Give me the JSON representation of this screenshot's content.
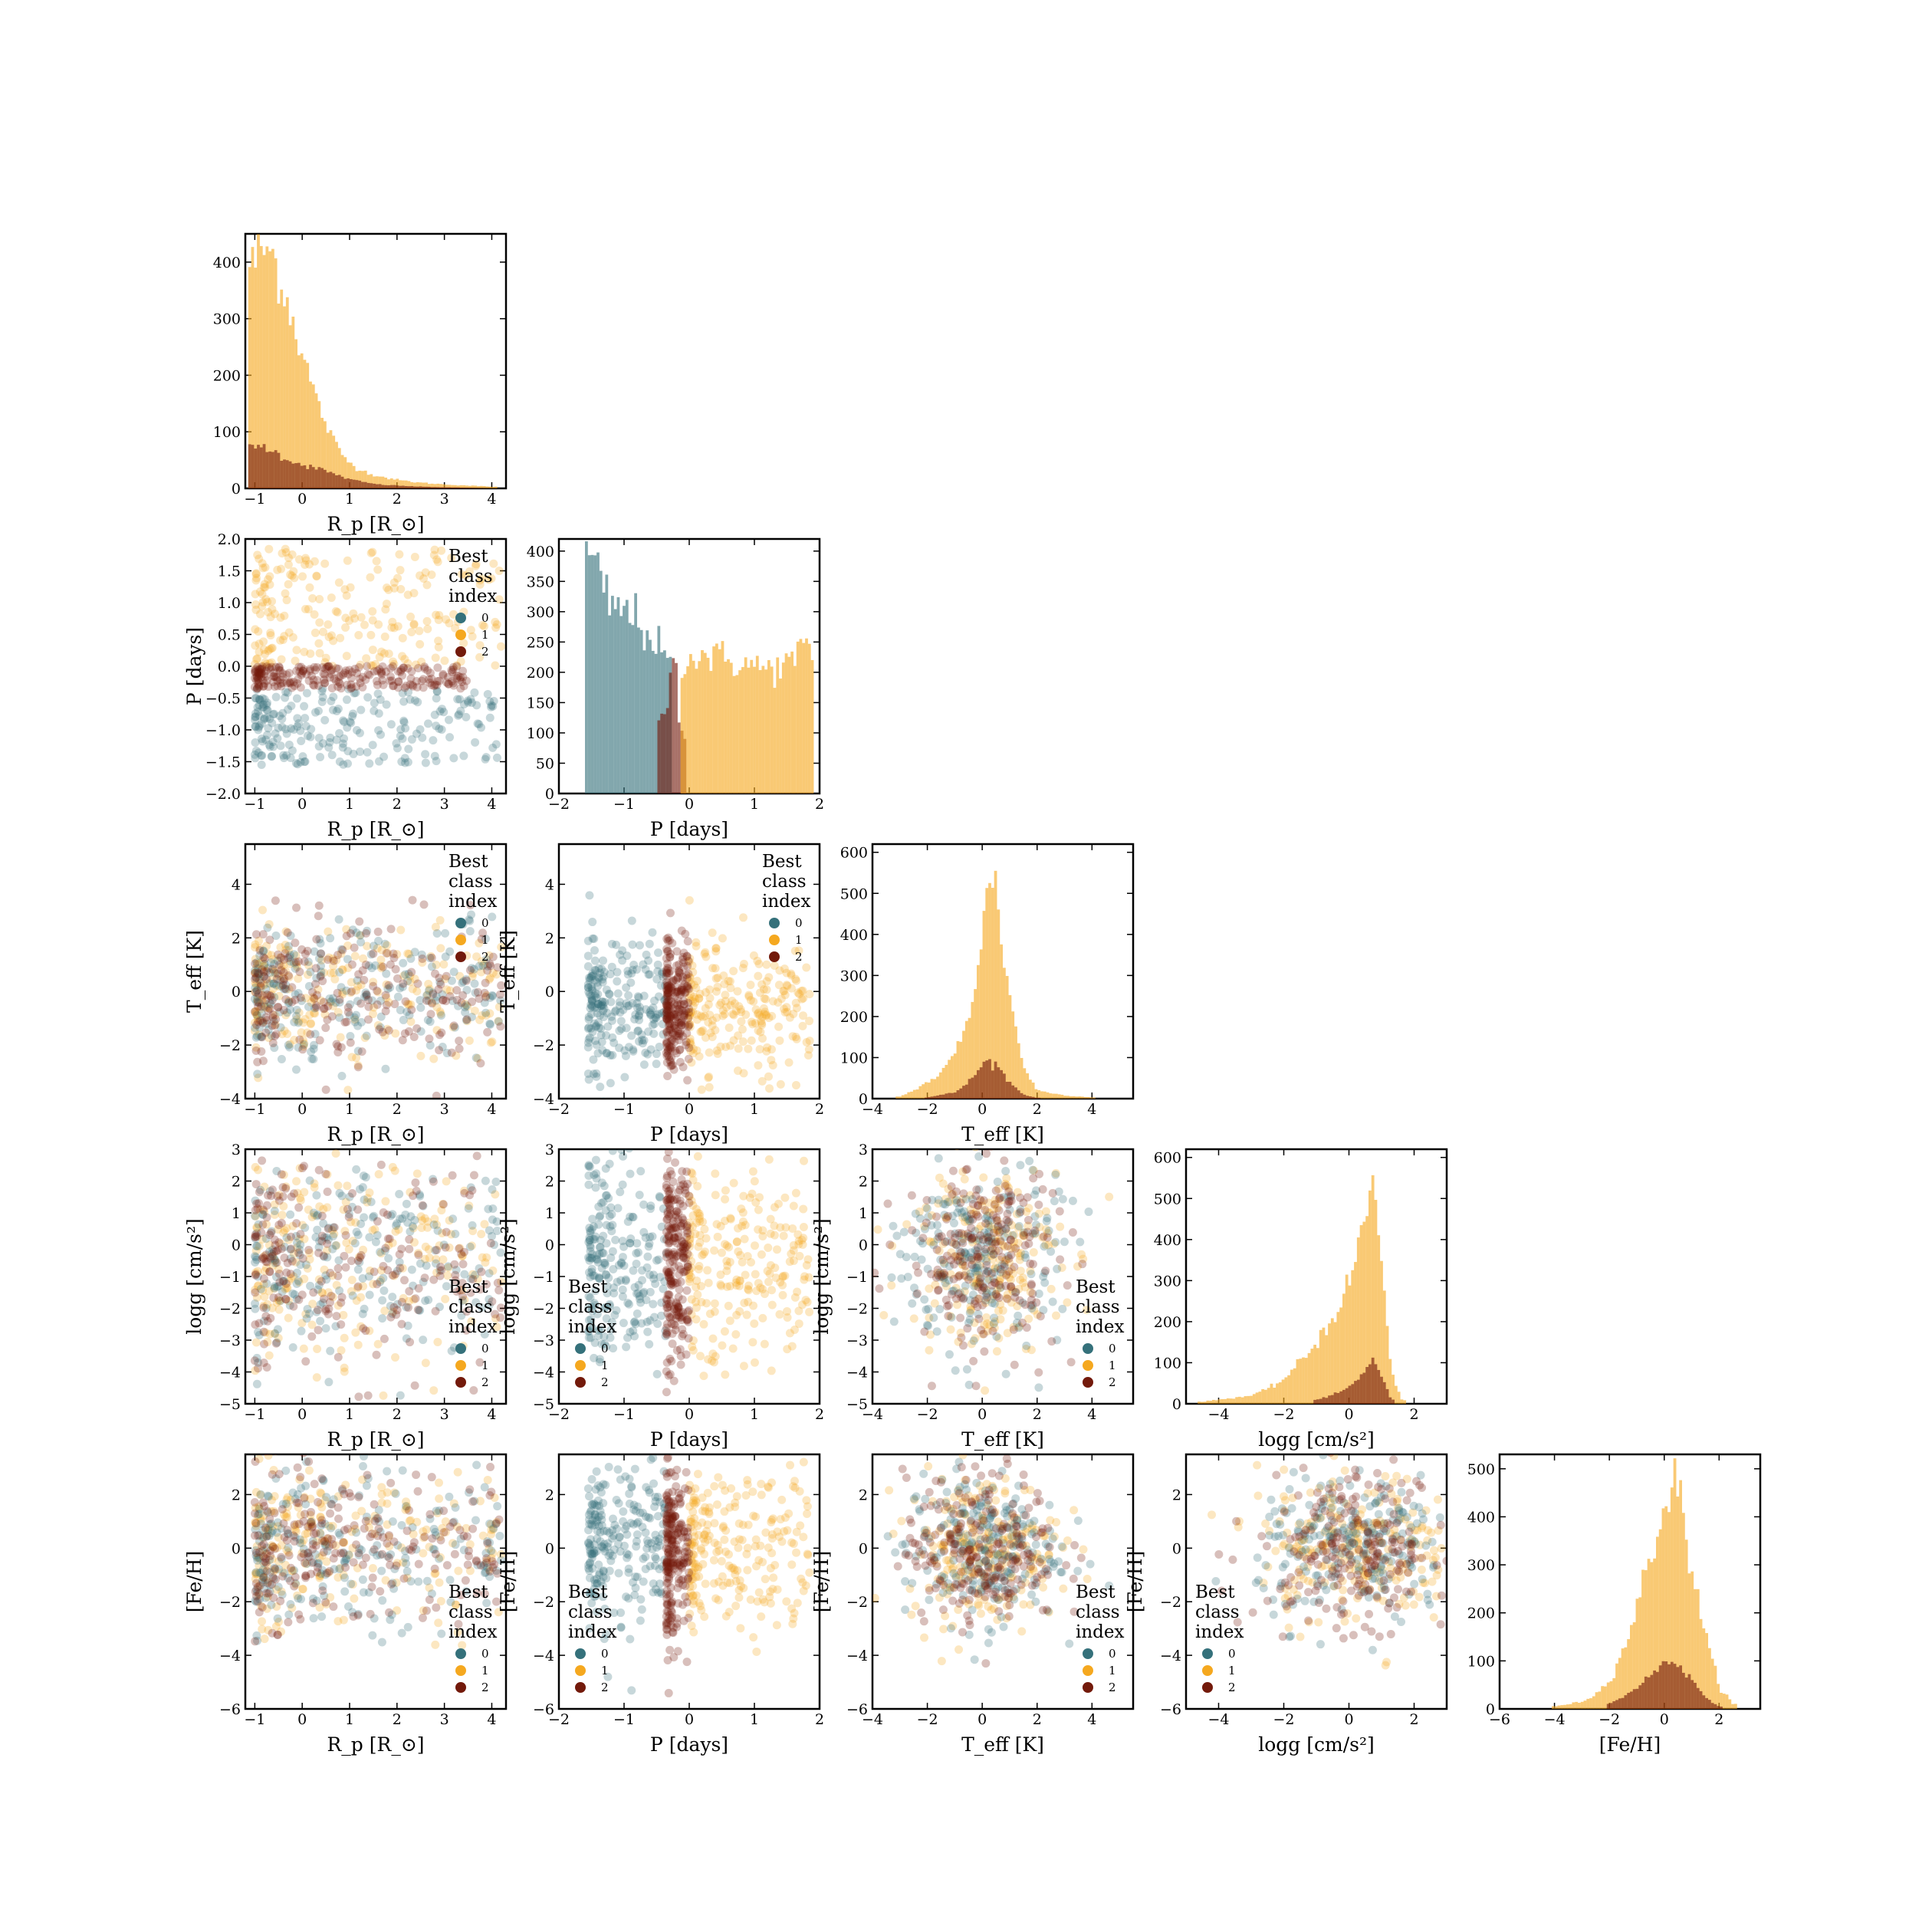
{
  "figure": {
    "type": "corner-plot",
    "colors": {
      "class_0": "#35717b",
      "class_1": "#f5a81f",
      "class_2": "#731a0b"
    }
  },
  "legend": {
    "title": [
      "Best",
      "class",
      "index"
    ],
    "items": [
      "0",
      "1",
      "2"
    ]
  },
  "params": [
    {
      "key": "Rp",
      "label": "R_p [R_⊙]",
      "range": [
        -1.2,
        4.3
      ],
      "ticks": [
        -1,
        0,
        1,
        2,
        3,
        4
      ]
    },
    {
      "key": "P",
      "label": "P [days]",
      "range": [
        -2,
        2
      ],
      "ticks": [
        -2,
        -1,
        0,
        1,
        2
      ]
    },
    {
      "key": "Teff",
      "label": "T_eff [K]",
      "range": [
        -4,
        5.5
      ],
      "ticks": [
        -4,
        -2,
        0,
        2,
        4
      ]
    },
    {
      "key": "logg",
      "label": "logg [cm/s²]",
      "range": [
        -5,
        3
      ],
      "ticks": [
        -4,
        -2,
        0,
        2
      ]
    },
    {
      "key": "FeH",
      "label": "[Fe/H]",
      "range": [
        -6,
        3.5
      ],
      "ticks": [
        -6,
        -4,
        -2,
        0,
        2
      ]
    }
  ],
  "y_tick_sets": {
    "P": [
      -2.0,
      -1.5,
      -1.0,
      -0.5,
      0.0,
      0.5,
      1.0,
      1.5,
      2.0
    ],
    "Teff": [
      -4,
      -2,
      0,
      2,
      4
    ],
    "logg": [
      -5,
      -4,
      -3,
      -2,
      -1,
      0,
      1,
      2,
      3
    ],
    "FeH": [
      -6,
      -4,
      -2,
      0,
      2
    ]
  },
  "chart_data": [
    {
      "type": "histogram",
      "variable": "Rp",
      "xlabel": "R_p [R_⊙]",
      "xlim": [
        -1.2,
        4.3
      ],
      "ylim": [
        0,
        450
      ],
      "yticks": [
        0,
        100,
        200,
        300,
        400
      ],
      "series": [
        {
          "name": "1",
          "x": [
            -1.0,
            -0.8,
            -0.6,
            -0.4,
            -0.2,
            0.0,
            0.2,
            0.4,
            0.6,
            0.8,
            1.0,
            1.3,
            1.6,
            2.0,
            2.5,
            3.0,
            3.5,
            4.0
          ],
          "values": [
            400,
            425,
            410,
            355,
            300,
            240,
            185,
            135,
            95,
            65,
            45,
            30,
            22,
            15,
            10,
            7,
            5,
            3
          ]
        },
        {
          "name": "2",
          "x": [
            -1.0,
            -0.8,
            -0.6,
            -0.4,
            -0.2,
            0.0,
            0.2,
            0.4,
            0.6,
            0.8,
            1.0,
            1.3,
            1.6,
            2.0,
            2.5,
            3.0,
            3.5,
            4.0
          ],
          "values": [
            70,
            75,
            65,
            55,
            48,
            42,
            38,
            33,
            28,
            22,
            16,
            11,
            7,
            5,
            3,
            2,
            1,
            0
          ]
        }
      ]
    },
    {
      "type": "histogram",
      "variable": "P",
      "xlabel": "P [days]",
      "xlim": [
        -2,
        2
      ],
      "ylim": [
        0,
        420
      ],
      "yticks": [
        0,
        50,
        100,
        150,
        200,
        250,
        300,
        350,
        400
      ],
      "series": [
        {
          "name": "0",
          "x": [
            -1.5,
            -1.4,
            -1.3,
            -1.2,
            -1.1,
            -1.0,
            -0.9,
            -0.8,
            -0.7,
            -0.6,
            -0.5,
            -0.4
          ],
          "values": [
            390,
            360,
            330,
            310,
            305,
            300,
            295,
            290,
            270,
            260,
            250,
            220
          ]
        },
        {
          "name": "2",
          "x": [
            -0.35,
            -0.3,
            -0.25,
            -0.2,
            -0.15
          ],
          "values": [
            120,
            210,
            240,
            200,
            100
          ]
        },
        {
          "name": "1",
          "x": [
            0.0,
            0.2,
            0.4,
            0.6,
            0.8,
            1.0,
            1.2,
            1.4,
            1.6,
            1.8
          ],
          "values": [
            220,
            230,
            225,
            220,
            215,
            210,
            205,
            210,
            220,
            240
          ]
        }
      ]
    },
    {
      "type": "histogram",
      "variable": "Teff",
      "xlabel": "T_eff [K]",
      "xlim": [
        -4,
        5.5
      ],
      "ylim": [
        0,
        620
      ],
      "yticks": [
        0,
        100,
        200,
        300,
        400,
        500,
        600
      ],
      "series": [
        {
          "name": "1",
          "x": [
            -3.0,
            -2.5,
            -2.0,
            -1.5,
            -1.0,
            -0.5,
            0.0,
            0.2,
            0.4,
            0.6,
            1.0,
            1.5,
            2.0,
            3.0,
            4.0
          ],
          "values": [
            5,
            20,
            40,
            60,
            110,
            200,
            380,
            520,
            560,
            450,
            250,
            80,
            20,
            8,
            3
          ]
        },
        {
          "name": "2",
          "x": [
            -2.0,
            -1.0,
            -0.5,
            0.0,
            0.2,
            0.4,
            0.6,
            1.0,
            1.5,
            2.0
          ],
          "values": [
            3,
            15,
            40,
            80,
            95,
            90,
            75,
            40,
            10,
            2
          ]
        }
      ]
    },
    {
      "type": "histogram",
      "variable": "logg",
      "xlabel": "logg [cm/s²]",
      "xlim": [
        -5,
        3
      ],
      "ylim": [
        0,
        620
      ],
      "yticks": [
        0,
        100,
        200,
        300,
        400,
        500,
        600
      ],
      "series": [
        {
          "name": "1",
          "x": [
            -4.5,
            -4.0,
            -3.0,
            -2.5,
            -2.0,
            -1.5,
            -1.0,
            -0.5,
            0.0,
            0.3,
            0.5,
            0.7,
            0.9,
            1.1,
            1.3,
            1.6
          ],
          "values": [
            5,
            10,
            20,
            35,
            60,
            100,
            150,
            210,
            290,
            380,
            470,
            540,
            450,
            250,
            80,
            10
          ]
        },
        {
          "name": "2",
          "x": [
            -1.0,
            -0.5,
            0.0,
            0.3,
            0.5,
            0.7,
            0.9,
            1.1,
            1.3
          ],
          "values": [
            10,
            20,
            40,
            60,
            80,
            110,
            90,
            50,
            10
          ]
        }
      ]
    },
    {
      "type": "histogram",
      "variable": "FeH",
      "xlabel": "[Fe/H]",
      "xlim": [
        -6,
        3.5
      ],
      "ylim": [
        0,
        530
      ],
      "yticks": [
        0,
        100,
        200,
        300,
        400,
        500
      ],
      "series": [
        {
          "name": "1",
          "x": [
            -4.0,
            -3.0,
            -2.5,
            -2.0,
            -1.5,
            -1.0,
            -0.5,
            0.0,
            0.3,
            0.6,
            1.0,
            1.5,
            2.0,
            2.5
          ],
          "values": [
            5,
            15,
            30,
            60,
            120,
            210,
            320,
            420,
            480,
            430,
            300,
            150,
            50,
            10
          ]
        },
        {
          "name": "2",
          "x": [
            -2.0,
            -1.5,
            -1.0,
            -0.5,
            0.0,
            0.3,
            0.6,
            1.0,
            1.5,
            2.0
          ],
          "values": [
            10,
            25,
            45,
            70,
            95,
            100,
            90,
            60,
            25,
            5
          ]
        }
      ]
    },
    {
      "type": "scatter",
      "x": "Rp",
      "y": "P",
      "xlabel": "R_p [R_⊙]",
      "ylabel": "P [days]",
      "legend": "top-right",
      "series": [
        {
          "name": "0",
          "x_range": [
            -1.0,
            4.2
          ],
          "y_range": [
            -1.55,
            -0.35
          ],
          "density_peak": -0.8
        },
        {
          "name": "1",
          "x_range": [
            -1.0,
            4.2
          ],
          "y_range": [
            0.0,
            1.85
          ],
          "density_peak": -0.8
        },
        {
          "name": "2",
          "x_range": [
            -1.0,
            3.5
          ],
          "y_range": [
            -0.35,
            0.0
          ],
          "density_peak": -0.8
        }
      ]
    },
    {
      "type": "scatter",
      "x": "Rp",
      "y": "Teff",
      "xlabel": "R_p [R_⊙]",
      "ylabel": "T_eff [K]",
      "legend": "top-right",
      "series": [
        {
          "name": "0",
          "x_range": [
            -1.0,
            4.2
          ],
          "y_center": 0.0,
          "y_spread": 1.3
        },
        {
          "name": "1",
          "x_range": [
            -1.0,
            4.2
          ],
          "y_center": 0.0,
          "y_spread": 1.3
        },
        {
          "name": "2",
          "x_range": [
            -1.0,
            4.2
          ],
          "y_center": 0.0,
          "y_spread": 1.3
        }
      ]
    },
    {
      "type": "scatter",
      "x": "P",
      "y": "Teff",
      "xlabel": "P [days]",
      "ylabel": "T_eff [K]",
      "legend": "top-right",
      "series": [
        {
          "name": "0",
          "x_range": [
            -1.55,
            -0.35
          ],
          "y_center": -0.5,
          "y_spread": 1.2
        },
        {
          "name": "1",
          "x_range": [
            0.0,
            1.85
          ],
          "y_center": -0.5,
          "y_spread": 1.2
        },
        {
          "name": "2",
          "x_range": [
            -0.35,
            0.0
          ],
          "y_center": -0.5,
          "y_spread": 1.2
        }
      ]
    },
    {
      "type": "scatter",
      "x": "Rp",
      "y": "logg",
      "xlabel": "R_p [R_⊙]",
      "ylabel": "logg [cm/s²]",
      "legend": "lower-right",
      "series": [
        {
          "name": "0",
          "x_range": [
            -1.0,
            4.2
          ],
          "y_center": -0.5,
          "y_spread": 1.6
        },
        {
          "name": "1",
          "x_range": [
            -1.0,
            4.2
          ],
          "y_center": -0.5,
          "y_spread": 1.6
        },
        {
          "name": "2",
          "x_range": [
            -1.0,
            4.2
          ],
          "y_center": -0.5,
          "y_spread": 1.6
        }
      ]
    },
    {
      "type": "scatter",
      "x": "P",
      "y": "logg",
      "xlabel": "P [days]",
      "ylabel": "logg [cm/s²]",
      "legend": "lower-left",
      "series": [
        {
          "name": "0",
          "x_range": [
            -1.55,
            -0.35
          ],
          "y_center": -0.5,
          "y_spread": 1.6
        },
        {
          "name": "1",
          "x_range": [
            0.0,
            1.85
          ],
          "y_center": -0.5,
          "y_spread": 1.6
        },
        {
          "name": "2",
          "x_range": [
            -0.35,
            0.0
          ],
          "y_center": -0.5,
          "y_spread": 1.6
        }
      ]
    },
    {
      "type": "scatter",
      "x": "Teff",
      "y": "logg",
      "xlabel": "T_eff [K]",
      "ylabel": "logg [cm/s²]",
      "legend": "lower-right",
      "series": [
        {
          "name": "0",
          "x_center": 0.0,
          "x_spread": 1.4,
          "y_center": -0.3,
          "y_spread": 1.5
        },
        {
          "name": "1",
          "x_center": 0.0,
          "x_spread": 1.4,
          "y_center": -0.3,
          "y_spread": 1.5
        },
        {
          "name": "2",
          "x_center": 0.0,
          "x_spread": 1.4,
          "y_center": -0.3,
          "y_spread": 1.5
        }
      ]
    },
    {
      "type": "scatter",
      "x": "Rp",
      "y": "FeH",
      "xlabel": "R_p [R_⊙]",
      "ylabel": "[Fe/H]",
      "legend": "lower-right",
      "series": [
        {
          "name": "0",
          "x_range": [
            -1.0,
            4.2
          ],
          "y_center": 0.0,
          "y_spread": 1.5
        },
        {
          "name": "1",
          "x_range": [
            -1.0,
            4.2
          ],
          "y_center": 0.0,
          "y_spread": 1.5
        },
        {
          "name": "2",
          "x_range": [
            -1.0,
            4.2
          ],
          "y_center": 0.0,
          "y_spread": 1.5
        }
      ]
    },
    {
      "type": "scatter",
      "x": "P",
      "y": "FeH",
      "xlabel": "P [days]",
      "ylabel": "[Fe/H]",
      "legend": "lower-left",
      "series": [
        {
          "name": "0",
          "x_range": [
            -1.55,
            -0.35
          ],
          "y_center": 0.0,
          "y_spread": 1.6
        },
        {
          "name": "1",
          "x_range": [
            0.0,
            1.85
          ],
          "y_center": 0.0,
          "y_spread": 1.6
        },
        {
          "name": "2",
          "x_range": [
            -0.35,
            0.0
          ],
          "y_center": 0.0,
          "y_spread": 1.6
        }
      ]
    },
    {
      "type": "scatter",
      "x": "Teff",
      "y": "FeH",
      "xlabel": "T_eff [K]",
      "ylabel": "[Fe/H]",
      "legend": "lower-right",
      "series": [
        {
          "name": "0",
          "x_center": 0.0,
          "x_spread": 1.4,
          "y_center": 0.0,
          "y_spread": 1.4
        },
        {
          "name": "1",
          "x_center": 0.0,
          "x_spread": 1.4,
          "y_center": 0.0,
          "y_spread": 1.4
        },
        {
          "name": "2",
          "x_center": 0.0,
          "x_spread": 1.4,
          "y_center": 0.0,
          "y_spread": 1.4
        }
      ]
    },
    {
      "type": "scatter",
      "x": "logg",
      "y": "FeH",
      "xlabel": "logg [cm/s²]",
      "ylabel": "[Fe/H]",
      "legend": "lower-left",
      "series": [
        {
          "name": "0",
          "x_center": 0.2,
          "x_spread": 1.5,
          "y_center": 0.0,
          "y_spread": 1.4
        },
        {
          "name": "1",
          "x_center": 0.2,
          "x_spread": 1.5,
          "y_center": 0.0,
          "y_spread": 1.4
        },
        {
          "name": "2",
          "x_center": 0.2,
          "x_spread": 1.5,
          "y_center": 0.0,
          "y_spread": 1.4
        }
      ]
    }
  ]
}
